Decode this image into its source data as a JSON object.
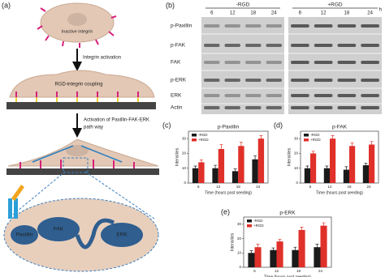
{
  "panels": [
    "(a)",
    "(b)",
    "(c)",
    "(d)",
    "(e)"
  ],
  "diagram": {
    "steps": [
      "Inactive integrin",
      "Integrin activation",
      "RGD-integrin coupling"
    ],
    "pathway": [
      "Activation of Paxillin-FAK-ERK",
      "path way"
    ],
    "nodes": [
      "Paxillin",
      "FAK",
      "ERK"
    ]
  },
  "blot": {
    "groups": [
      "-RGD",
      "+RGD"
    ],
    "times": [
      "6",
      "12",
      "18",
      "24"
    ],
    "unit": "h",
    "rows": [
      "p-Paxillin",
      "p-FAK",
      "FAK",
      "p-ERK",
      "ERK",
      "Actin"
    ]
  },
  "chart_data": [
    {
      "type": "bar",
      "title": "p-Paxillin",
      "x_label": "Time (hours post seeding)",
      "y_label": "Intensities",
      "categories": [
        "6",
        "12",
        "18",
        "24"
      ],
      "ylim": [
        0,
        35
      ],
      "yticks": [
        0,
        10,
        20,
        30
      ],
      "legend": "top-left",
      "series": [
        {
          "name": "-RGD",
          "color": "#1a1a1a",
          "values": [
            10,
            10,
            8,
            16
          ],
          "errors": [
            1.5,
            2,
            1.5,
            2.5
          ]
        },
        {
          "name": "+RGD",
          "color": "#e0302a",
          "values": [
            14,
            23,
            25,
            30
          ],
          "errors": [
            1.5,
            3,
            2.5,
            2
          ]
        }
      ]
    },
    {
      "type": "bar",
      "title": "p-FAK",
      "x_label": "Time (hours post seeding)",
      "y_label": "Intensities",
      "categories": [
        "6",
        "12",
        "18",
        "24"
      ],
      "ylim": [
        0,
        35
      ],
      "yticks": [
        0,
        10,
        20,
        30
      ],
      "legend": "top-left",
      "series": [
        {
          "name": "-RGD",
          "color": "#1a1a1a",
          "values": [
            10,
            10,
            9,
            12
          ],
          "errors": [
            1.5,
            1.5,
            2,
            1.5
          ]
        },
        {
          "name": "+RGD",
          "color": "#e0302a",
          "values": [
            20,
            30,
            25,
            26
          ],
          "errors": [
            1.5,
            2,
            2,
            2
          ]
        }
      ]
    },
    {
      "type": "bar",
      "title": "p-ERK",
      "x_label": "Time (hours post seeding)",
      "y_label": "Intensities",
      "categories": [
        "6",
        "12",
        "18",
        "24"
      ],
      "ylim": [
        0,
        35
      ],
      "yticks": [
        0,
        10,
        20,
        30
      ],
      "legend": "top-left",
      "series": [
        {
          "name": "-RGD",
          "color": "#1a1a1a",
          "values": [
            10,
            12,
            12,
            14
          ],
          "errors": [
            1.5,
            1.5,
            2,
            2
          ]
        },
        {
          "name": "+RGD",
          "color": "#e0302a",
          "values": [
            14,
            18,
            26,
            29
          ],
          "errors": [
            2,
            1.5,
            2,
            2
          ]
        }
      ]
    }
  ]
}
